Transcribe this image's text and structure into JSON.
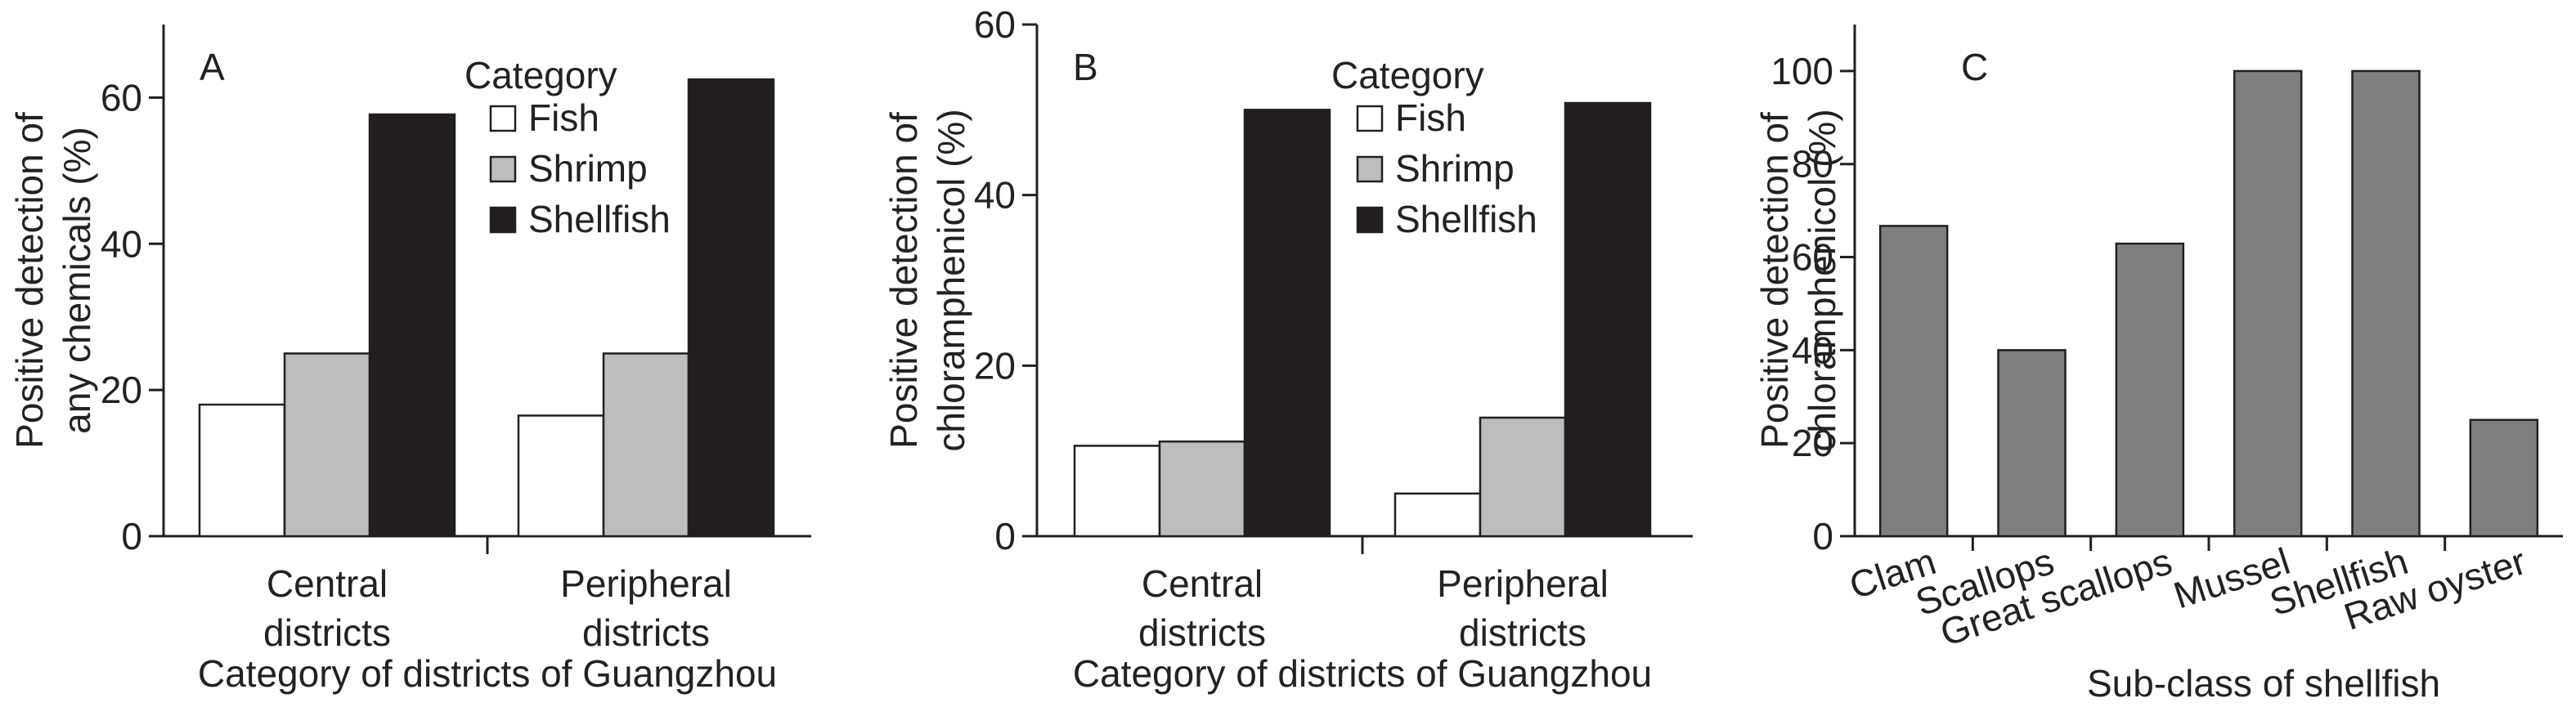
{
  "chart_data": [
    {
      "type": "bar",
      "panel_label": "A",
      "categories": [
        "Central districts",
        "Peripheral districts"
      ],
      "category_lines": [
        [
          "Central",
          "districts"
        ],
        [
          "Peripheral",
          "districts"
        ]
      ],
      "series": [
        {
          "name": "Fish",
          "values": [
            18,
            16.5
          ]
        },
        {
          "name": "Shrimp",
          "values": [
            25,
            25
          ]
        },
        {
          "name": "Shellfish",
          "values": [
            57.7,
            62.5
          ]
        }
      ],
      "legend_title": "Category",
      "legend_position": "top-right",
      "xlabel": "Category of districts of Guangzhou",
      "ylabel_lines": [
        "Positive detection of",
        "any chemicals (%)"
      ],
      "ylim": [
        0,
        70
      ],
      "yticks": [
        0,
        20,
        40,
        60
      ],
      "grid": false
    },
    {
      "type": "bar",
      "panel_label": "B",
      "categories": [
        "Central districts",
        "Peripheral districts"
      ],
      "category_lines": [
        [
          "Central",
          "districts"
        ],
        [
          "Peripheral",
          "districts"
        ]
      ],
      "series": [
        {
          "name": "Fish",
          "values": [
            10.6,
            5
          ]
        },
        {
          "name": "Shrimp",
          "values": [
            11.1,
            13.9
          ]
        },
        {
          "name": "Shellfish",
          "values": [
            50,
            50.8
          ]
        }
      ],
      "legend_title": "Category",
      "legend_position": "top-right",
      "xlabel": "Category of districts of Guangzhou",
      "ylabel_lines": [
        "Positive detection of",
        "chloramphenicol (%)"
      ],
      "ylim": [
        0,
        60
      ],
      "yticks": [
        0,
        20,
        40,
        60
      ],
      "grid": false
    },
    {
      "type": "bar",
      "panel_label": "C",
      "categories": [
        "Clam",
        "Scallops",
        "Great scallops",
        "Mussel",
        "Shellfish",
        "Raw oyster"
      ],
      "values": [
        66.7,
        40,
        62.9,
        100,
        100,
        25
      ],
      "xlabel": "Sub-class of shellfish",
      "ylabel_lines": [
        "Positive detection of",
        "chloramphenicol (%)"
      ],
      "ylim": [
        0,
        110
      ],
      "yticks": [
        0,
        20,
        40,
        60,
        80,
        100
      ],
      "grid": false
    }
  ],
  "colors": {
    "fish": "#ffffff",
    "shrimp": "#bdbdbd",
    "shellfish": "#231f20",
    "panel_c_bar": "#7f7f7f",
    "axis": "#231f20"
  }
}
